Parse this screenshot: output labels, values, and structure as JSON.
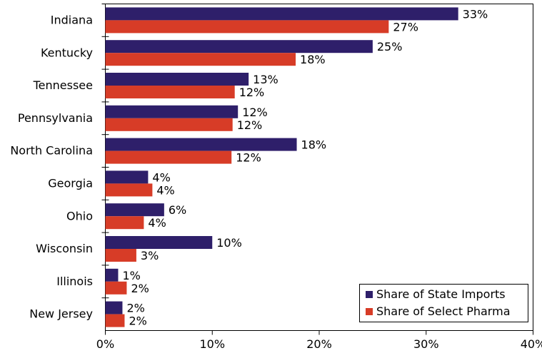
{
  "chart_data": {
    "type": "bar",
    "orientation": "horizontal",
    "categories": [
      "Indiana",
      "Kentucky",
      "Tennessee",
      "Pennsylvania",
      "North Carolina",
      "Georgia",
      "Ohio",
      "Wisconsin",
      "Illinois",
      "New Jersey"
    ],
    "series": [
      {
        "name": "Share of State Imports",
        "color": "#2e1f6a",
        "values": [
          33,
          25,
          13.4,
          12.4,
          17.9,
          4,
          5.5,
          10,
          1.2,
          1.6
        ],
        "labels": [
          "33%",
          "25%",
          "13%",
          "12%",
          "18%",
          "4%",
          "6%",
          "10%",
          "1%",
          "2%"
        ]
      },
      {
        "name": "Share of Select Pharma",
        "color": "#d73c27",
        "values": [
          26.5,
          17.8,
          12.1,
          11.9,
          11.8,
          4.4,
          3.6,
          2.9,
          2,
          1.8
        ],
        "labels": [
          "27%",
          "18%",
          "12%",
          "12%",
          "12%",
          "4%",
          "4%",
          "3%",
          "2%",
          "2%"
        ]
      }
    ],
    "xlim": [
      0,
      40
    ],
    "x_ticks": [
      0,
      10,
      20,
      30,
      40
    ],
    "x_tick_labels": [
      "0%",
      "10%",
      "20%",
      "30%",
      "40%"
    ],
    "grid": false,
    "legend_position": "bottom-right"
  }
}
